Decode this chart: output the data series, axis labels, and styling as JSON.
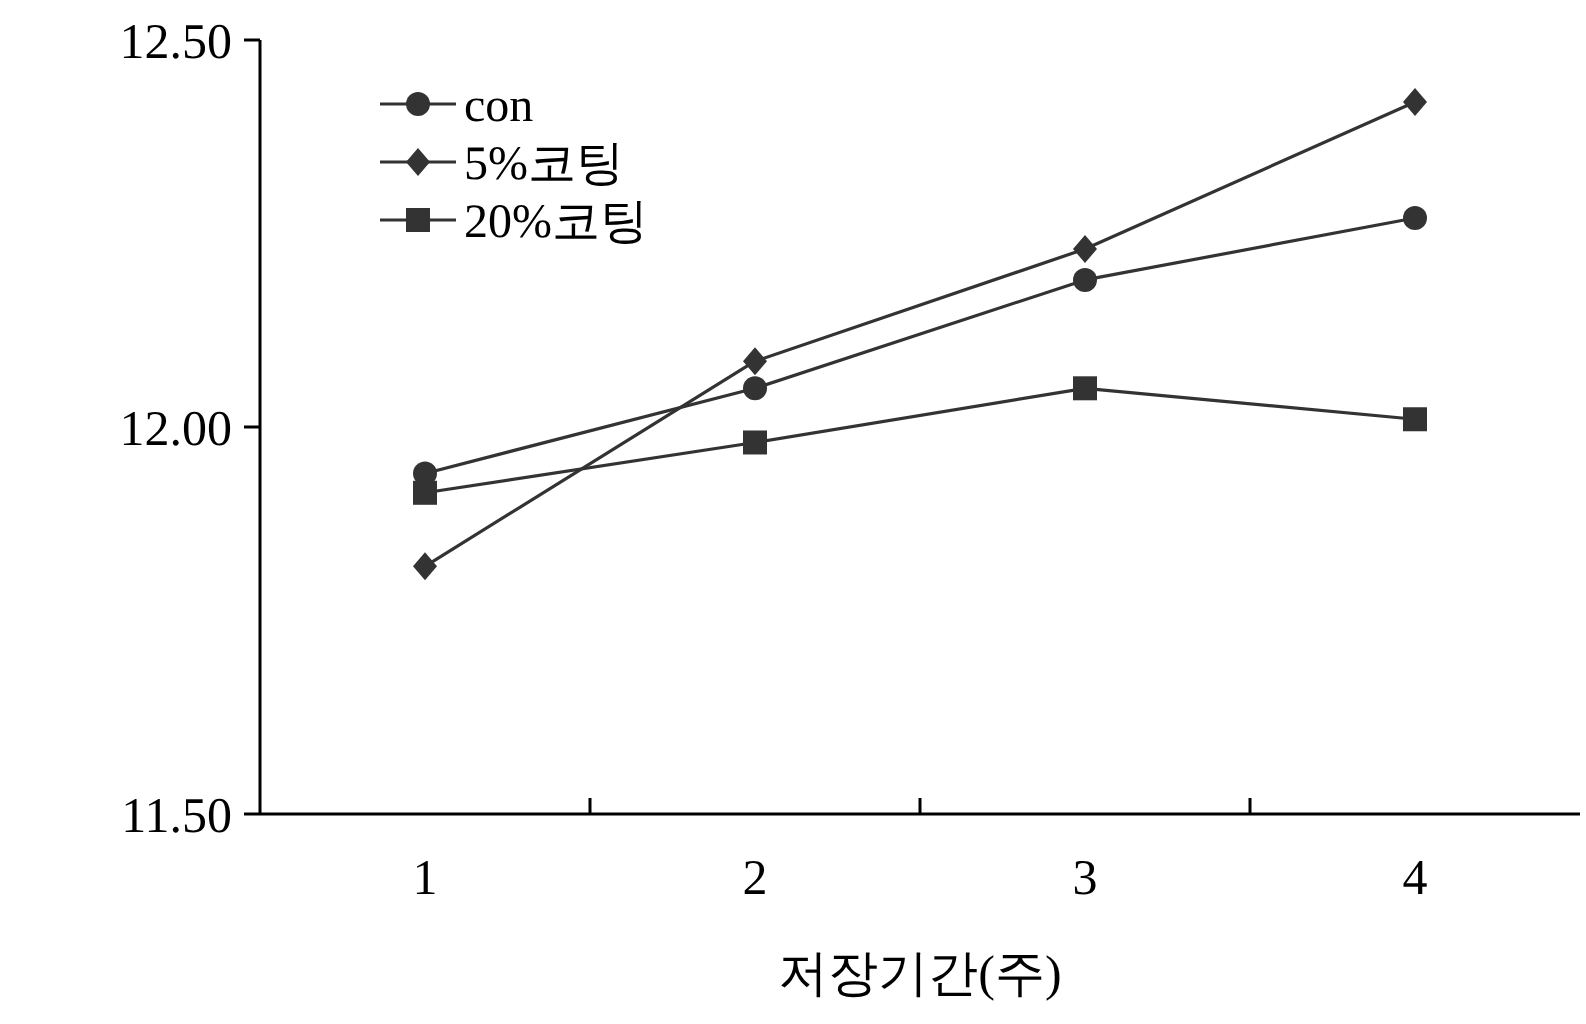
{
  "chart_data": {
    "type": "line",
    "xlabel": "저장기간(주)",
    "categories": [
      "1",
      "2",
      "3",
      "4"
    ],
    "ylim": [
      11.5,
      12.5
    ],
    "yticks": [
      {
        "value": 11.5,
        "label": "11.50"
      },
      {
        "value": 12,
        "label": "12.00"
      },
      {
        "value": 12.5,
        "label": "12.50"
      }
    ],
    "legend": "top left",
    "grid": false,
    "line_style": "solid",
    "series": [
      {
        "name": "con",
        "color": "#333333",
        "marker": "circle",
        "values": [
          11.94,
          12.05,
          12.19,
          12.27
        ]
      },
      {
        "name": "5%코팅",
        "color": "#333333",
        "marker": "diamond",
        "values": [
          11.82,
          12.085,
          12.23,
          12.42
        ]
      },
      {
        "name": "20%코팅",
        "color": "#333333",
        "marker": "square",
        "values": [
          11.915,
          11.98,
          12.05,
          12.01
        ]
      }
    ]
  }
}
